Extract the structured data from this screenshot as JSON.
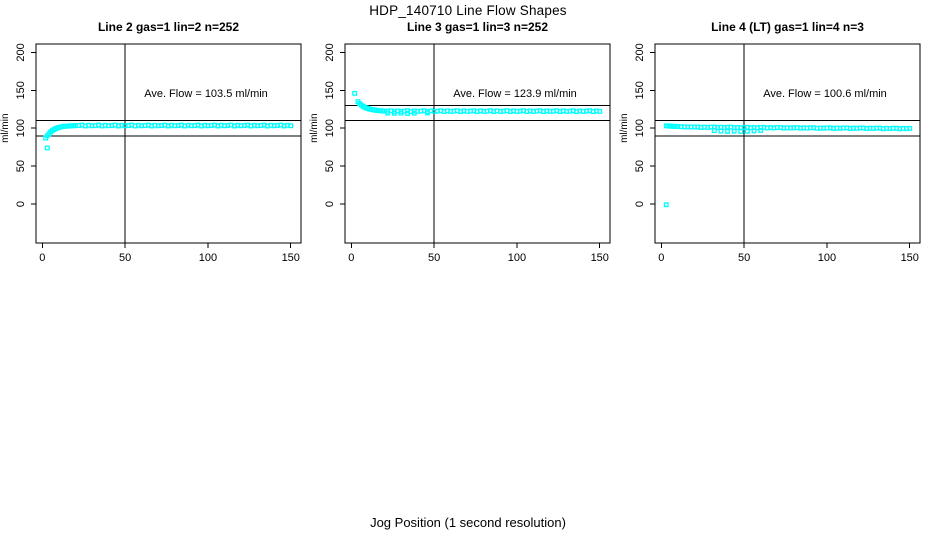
{
  "page_title": "HDP_140710  Line Flow Shapes",
  "xlabel": "Jog Position (1 second resolution)",
  "colors": {
    "points": "#00FFFF",
    "axis": "#000000",
    "background": "#FFFFFF"
  },
  "chart_data": [
    {
      "type": "scatter",
      "title": "Line 2 gas=1 lin=2 n=252",
      "annotation": "Ave. Flow =  103.5  ml/min",
      "ave_flow_ml_min": 103.5,
      "ylabel": "ml/min",
      "xlim": [
        0,
        150
      ],
      "ylim": [
        0,
        200
      ],
      "xticks": [
        0,
        50,
        100,
        150
      ],
      "yticks": [
        0,
        50,
        100,
        150,
        200
      ],
      "grid": false,
      "hlines": [
        110,
        90
      ],
      "vlines": [
        50
      ],
      "marker": "open-square",
      "color": "#00FFFF",
      "points": [
        [
          3,
          74
        ],
        [
          2,
          87
        ],
        [
          3,
          90
        ],
        [
          4,
          92.5
        ],
        [
          5,
          95
        ],
        [
          6,
          96.8
        ],
        [
          7,
          98.2
        ],
        [
          8,
          99.4
        ],
        [
          9,
          100.3
        ],
        [
          10,
          101
        ],
        [
          11,
          101.6
        ],
        [
          12,
          102
        ],
        [
          13,
          102.4
        ],
        [
          14,
          102.6
        ],
        [
          15,
          102.8
        ],
        [
          16,
          103
        ],
        [
          17,
          103.1
        ],
        [
          18,
          103.2
        ],
        [
          19,
          103.3
        ],
        [
          20,
          103.4
        ],
        [
          22,
          103.5
        ],
        [
          24,
          104.1
        ],
        [
          26,
          102.9
        ],
        [
          28,
          103.8
        ],
        [
          30,
          103.2
        ],
        [
          32,
          103.5
        ],
        [
          34,
          104.1
        ],
        [
          36,
          102.9
        ],
        [
          38,
          103.8
        ],
        [
          40,
          103.2
        ],
        [
          42,
          103.5
        ],
        [
          44,
          104.1
        ],
        [
          46,
          102.9
        ],
        [
          48,
          103.8
        ],
        [
          50,
          103.2
        ],
        [
          52,
          103.5
        ],
        [
          54,
          104.1
        ],
        [
          56,
          102.9
        ],
        [
          58,
          103.8
        ],
        [
          60,
          103.2
        ],
        [
          62,
          103.5
        ],
        [
          64,
          104.1
        ],
        [
          66,
          102.9
        ],
        [
          68,
          103.8
        ],
        [
          70,
          103.2
        ],
        [
          72,
          103.5
        ],
        [
          74,
          104.1
        ],
        [
          76,
          102.9
        ],
        [
          78,
          103.8
        ],
        [
          80,
          103.2
        ],
        [
          82,
          103.5
        ],
        [
          84,
          104.1
        ],
        [
          86,
          102.9
        ],
        [
          88,
          103.8
        ],
        [
          90,
          103.2
        ],
        [
          92,
          103.5
        ],
        [
          94,
          104.1
        ],
        [
          96,
          102.9
        ],
        [
          98,
          103.8
        ],
        [
          100,
          103.2
        ],
        [
          102,
          103.5
        ],
        [
          104,
          104.1
        ],
        [
          106,
          102.9
        ],
        [
          108,
          103.8
        ],
        [
          110,
          103.2
        ],
        [
          112,
          103.5
        ],
        [
          114,
          104.1
        ],
        [
          116,
          102.9
        ],
        [
          118,
          103.8
        ],
        [
          120,
          103.2
        ],
        [
          122,
          103.5
        ],
        [
          124,
          104.1
        ],
        [
          126,
          102.9
        ],
        [
          128,
          103.8
        ],
        [
          130,
          103.2
        ],
        [
          132,
          103.5
        ],
        [
          134,
          104.1
        ],
        [
          136,
          102.9
        ],
        [
          138,
          103.8
        ],
        [
          140,
          103.2
        ],
        [
          142,
          103.5
        ],
        [
          144,
          104.1
        ],
        [
          146,
          102.9
        ],
        [
          148,
          103.8
        ],
        [
          150,
          103.2
        ]
      ]
    },
    {
      "type": "scatter",
      "title": "Line 3 gas=1 lin=3 n=252",
      "annotation": "Ave. Flow =  123.9  ml/min",
      "ave_flow_ml_min": 123.9,
      "ylabel": "ml/min",
      "xlim": [
        0,
        150
      ],
      "ylim": [
        0,
        200
      ],
      "xticks": [
        0,
        50,
        100,
        150
      ],
      "yticks": [
        0,
        50,
        100,
        150,
        200
      ],
      "grid": false,
      "hlines": [
        130,
        110
      ],
      "vlines": [
        50
      ],
      "marker": "open-square",
      "color": "#00FFFF",
      "points": [
        [
          2,
          146
        ],
        [
          4,
          135
        ],
        [
          5,
          132.5
        ],
        [
          6,
          130.5
        ],
        [
          7,
          129
        ],
        [
          8,
          127.8
        ],
        [
          9,
          126.8
        ],
        [
          10,
          126
        ],
        [
          11,
          125.3
        ],
        [
          12,
          124.8
        ],
        [
          13,
          124.3
        ],
        [
          14,
          124
        ],
        [
          15,
          123.6
        ],
        [
          16,
          123.4
        ],
        [
          17,
          123.1
        ],
        [
          18,
          122.9
        ],
        [
          19,
          122.8
        ],
        [
          20,
          122.6
        ],
        [
          22,
          120
        ],
        [
          26,
          119.6
        ],
        [
          30,
          119.9
        ],
        [
          34,
          119.5
        ],
        [
          38,
          119.8
        ],
        [
          46,
          120.1
        ],
        [
          22,
          122.5
        ],
        [
          24,
          123.1
        ],
        [
          26,
          121.9
        ],
        [
          28,
          122.8
        ],
        [
          30,
          122.2
        ],
        [
          32,
          122.5
        ],
        [
          34,
          123.1
        ],
        [
          36,
          121.9
        ],
        [
          38,
          122.8
        ],
        [
          40,
          122.2
        ],
        [
          42,
          122.5
        ],
        [
          44,
          123.1
        ],
        [
          46,
          121.9
        ],
        [
          48,
          122.8
        ],
        [
          50,
          122.2
        ],
        [
          52,
          122.5
        ],
        [
          54,
          123.1
        ],
        [
          56,
          121.9
        ],
        [
          58,
          122.8
        ],
        [
          60,
          122.2
        ],
        [
          62,
          122.5
        ],
        [
          64,
          123.1
        ],
        [
          66,
          121.9
        ],
        [
          68,
          122.8
        ],
        [
          70,
          122.2
        ],
        [
          72,
          122.5
        ],
        [
          74,
          123.1
        ],
        [
          76,
          121.9
        ],
        [
          78,
          122.8
        ],
        [
          80,
          122.2
        ],
        [
          82,
          122.5
        ],
        [
          84,
          123.1
        ],
        [
          86,
          121.9
        ],
        [
          88,
          122.8
        ],
        [
          90,
          122.2
        ],
        [
          92,
          122.5
        ],
        [
          94,
          123.1
        ],
        [
          96,
          121.9
        ],
        [
          98,
          122.8
        ],
        [
          100,
          122.2
        ],
        [
          102,
          122.5
        ],
        [
          104,
          123.1
        ],
        [
          106,
          121.9
        ],
        [
          108,
          122.8
        ],
        [
          110,
          122.2
        ],
        [
          112,
          122.5
        ],
        [
          114,
          123.1
        ],
        [
          116,
          121.9
        ],
        [
          118,
          122.8
        ],
        [
          120,
          122.2
        ],
        [
          122,
          122.5
        ],
        [
          124,
          123.1
        ],
        [
          126,
          121.9
        ],
        [
          128,
          122.8
        ],
        [
          130,
          122.2
        ],
        [
          132,
          122.5
        ],
        [
          134,
          123.1
        ],
        [
          136,
          121.9
        ],
        [
          138,
          122.8
        ],
        [
          140,
          122.2
        ],
        [
          142,
          122.5
        ],
        [
          144,
          123.1
        ],
        [
          146,
          121.9
        ],
        [
          148,
          122.8
        ],
        [
          150,
          122.2
        ]
      ]
    },
    {
      "type": "scatter",
      "title": "Line 4 (LT) gas=1 lin=4 n=3",
      "annotation": "Ave. Flow =  100.6  ml/min",
      "ave_flow_ml_min": 100.6,
      "ylabel": "ml/min",
      "xlim": [
        0,
        150
      ],
      "ylim": [
        0,
        200
      ],
      "xticks": [
        0,
        50,
        100,
        150
      ],
      "yticks": [
        0,
        50,
        100,
        150,
        200
      ],
      "grid": false,
      "hlines": [
        110,
        90
      ],
      "vlines": [
        50
      ],
      "marker": "open-square",
      "color": "#00FFFF",
      "points": [
        [
          3,
          -1
        ],
        [
          3,
          103.2
        ],
        [
          4,
          103
        ],
        [
          5,
          102.8
        ],
        [
          6,
          102.7
        ],
        [
          7,
          102.5
        ],
        [
          8,
          102.4
        ],
        [
          9,
          102.3
        ],
        [
          10,
          102.2
        ],
        [
          12,
          102
        ],
        [
          14,
          101.8
        ],
        [
          16,
          101.7
        ],
        [
          18,
          101.6
        ],
        [
          20,
          101.5
        ],
        [
          32,
          96.8
        ],
        [
          36,
          96.2
        ],
        [
          40,
          95.8
        ],
        [
          44,
          96.1
        ],
        [
          48,
          95.7
        ],
        [
          52,
          96
        ],
        [
          56,
          96.4
        ],
        [
          60,
          97
        ],
        [
          22,
          101.7
        ],
        [
          24,
          100.9
        ],
        [
          26,
          101.4
        ],
        [
          28,
          101
        ],
        [
          30,
          101.5
        ],
        [
          32,
          101.6
        ],
        [
          34,
          100.8
        ],
        [
          36,
          101.2
        ],
        [
          38,
          100.9
        ],
        [
          40,
          101.3
        ],
        [
          42,
          101.4
        ],
        [
          44,
          100.6
        ],
        [
          46,
          101
        ],
        [
          48,
          100.7
        ],
        [
          50,
          101.1
        ],
        [
          52,
          101.2
        ],
        [
          54,
          100.4
        ],
        [
          56,
          100.9
        ],
        [
          58,
          100.5
        ],
        [
          60,
          101
        ],
        [
          62,
          101.1
        ],
        [
          64,
          100.3
        ],
        [
          66,
          100.8
        ],
        [
          68,
          100.4
        ],
        [
          70,
          100.9
        ],
        [
          72,
          100.9
        ],
        [
          74,
          100.1
        ],
        [
          76,
          100.6
        ],
        [
          78,
          100.3
        ],
        [
          80,
          100.7
        ],
        [
          82,
          100.8
        ],
        [
          84,
          100
        ],
        [
          86,
          100.5
        ],
        [
          88,
          100.1
        ],
        [
          90,
          100.6
        ],
        [
          92,
          100.6
        ],
        [
          94,
          99.8
        ],
        [
          96,
          100.3
        ],
        [
          98,
          100
        ],
        [
          100,
          100.4
        ],
        [
          102,
          100.5
        ],
        [
          104,
          99.7
        ],
        [
          106,
          100.2
        ],
        [
          108,
          99.9
        ],
        [
          110,
          100.3
        ],
        [
          112,
          100.4
        ],
        [
          114,
          99.6
        ],
        [
          116,
          100.1
        ],
        [
          118,
          99.8
        ],
        [
          120,
          100.2
        ],
        [
          122,
          100.3
        ],
        [
          124,
          99.5
        ],
        [
          126,
          100
        ],
        [
          128,
          99.7
        ],
        [
          130,
          100.1
        ],
        [
          132,
          100.1
        ],
        [
          134,
          99.3
        ],
        [
          136,
          99.8
        ],
        [
          138,
          99.5
        ],
        [
          140,
          99.9
        ],
        [
          142,
          100
        ],
        [
          144,
          99.2
        ],
        [
          146,
          99.7
        ],
        [
          148,
          99.4
        ],
        [
          150,
          99.8
        ]
      ]
    }
  ]
}
